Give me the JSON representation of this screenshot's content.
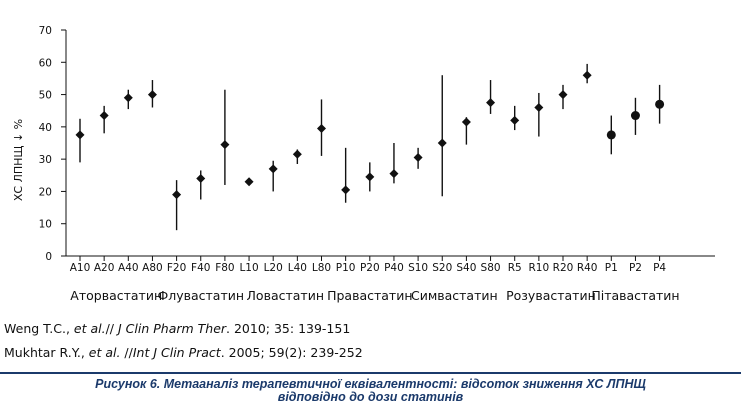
{
  "chart_data": {
    "type": "scatter",
    "ylabel": "ХС ЛПНЩ ↓ %",
    "ylim": [
      0,
      70
    ],
    "yticks": [
      "0",
      "10",
      "20",
      "30",
      "40",
      "50",
      "60",
      "70"
    ],
    "grid": false,
    "categories": [
      "A10",
      "A20",
      "A40",
      "A80",
      "F20",
      "F40",
      "F80",
      "L10",
      "L20",
      "L40",
      "L80",
      "P10",
      "P20",
      "P40",
      "S10",
      "S20",
      "S40",
      "S80",
      "R5",
      "R10",
      "R20",
      "R40",
      "P1",
      "P2",
      "P4"
    ],
    "points": [
      {
        "label": "A10",
        "value": 37.5,
        "low": 29,
        "high": 42.5,
        "marker": "diamond"
      },
      {
        "label": "A20",
        "value": 43.5,
        "low": 38,
        "high": 46.5,
        "marker": "diamond"
      },
      {
        "label": "A40",
        "value": 49,
        "low": 45.5,
        "high": 51.5,
        "marker": "diamond"
      },
      {
        "label": "A80",
        "value": 50,
        "low": 46,
        "high": 54.5,
        "marker": "diamond"
      },
      {
        "label": "F20",
        "value": 19,
        "low": 8,
        "high": 23.5,
        "marker": "diamond"
      },
      {
        "label": "F40",
        "value": 24,
        "low": 17.5,
        "high": 26.5,
        "marker": "diamond"
      },
      {
        "label": "F80",
        "value": 34.5,
        "low": 22,
        "high": 51.5,
        "marker": "diamond"
      },
      {
        "label": "L10",
        "value": 23,
        "low": 22,
        "high": 24,
        "marker": "diamond"
      },
      {
        "label": "L20",
        "value": 27,
        "low": 20,
        "high": 29.5,
        "marker": "diamond"
      },
      {
        "label": "L40",
        "value": 31.5,
        "low": 28.5,
        "high": 33,
        "marker": "diamond"
      },
      {
        "label": "L80",
        "value": 39.5,
        "low": 31,
        "high": 48.5,
        "marker": "diamond"
      },
      {
        "label": "P10",
        "value": 20.5,
        "low": 16.5,
        "high": 33.5,
        "marker": "diamond"
      },
      {
        "label": "P20",
        "value": 24.5,
        "low": 20,
        "high": 29,
        "marker": "diamond"
      },
      {
        "label": "P40",
        "value": 25.5,
        "low": 22.5,
        "high": 35,
        "marker": "diamond"
      },
      {
        "label": "S10",
        "value": 30.5,
        "low": 27,
        "high": 33.5,
        "marker": "diamond"
      },
      {
        "label": "S20",
        "value": 35,
        "low": 18.5,
        "high": 56,
        "marker": "diamond"
      },
      {
        "label": "S40",
        "value": 41.5,
        "low": 34.5,
        "high": 43,
        "marker": "diamond"
      },
      {
        "label": "S80",
        "value": 47.5,
        "low": 44,
        "high": 54.5,
        "marker": "diamond"
      },
      {
        "label": "R5",
        "value": 42,
        "low": 39,
        "high": 46.5,
        "marker": "diamond"
      },
      {
        "label": "R10",
        "value": 46,
        "low": 37,
        "high": 50.5,
        "marker": "diamond"
      },
      {
        "label": "R20",
        "value": 50,
        "low": 45.5,
        "high": 53,
        "marker": "diamond"
      },
      {
        "label": "R40",
        "value": 56,
        "low": 53.5,
        "high": 59.5,
        "marker": "diamond"
      },
      {
        "label": "P1",
        "value": 37.5,
        "low": 31.5,
        "high": 43.5,
        "marker": "circle"
      },
      {
        "label": "P2",
        "value": 43.5,
        "low": 37.5,
        "high": 49,
        "marker": "circle"
      },
      {
        "label": "P4",
        "value": 47,
        "low": 41,
        "high": 53,
        "marker": "circle"
      }
    ],
    "groups": [
      {
        "label": "Аторвастатин",
        "from": 0,
        "to": 3
      },
      {
        "label": "Флувастатин",
        "from": 4,
        "to": 6
      },
      {
        "label": "Ловастатин",
        "from": 7,
        "to": 10
      },
      {
        "label": "Правастатин",
        "from": 11,
        "to": 13
      },
      {
        "label": "Симвастатин",
        "from": 14,
        "to": 17
      },
      {
        "label": "Розувастатин",
        "from": 18,
        "to": 21
      },
      {
        "label": "Пітавастатин",
        "from": 22,
        "to": 24
      }
    ],
    "colors": {
      "marker": "#111111",
      "axis": "#111111"
    }
  },
  "references": {
    "ref1": {
      "authors": "Weng T.C., ",
      "etal": "et al.",
      "sep": "// ",
      "journal": "J Clin Pharm Ther",
      "rest": ". 2010; 35: 139-151"
    },
    "ref2": {
      "authors": "Mukhtar R.Y., ",
      "etal": "et al.",
      "sep": " //",
      "journal": "Int J Clin Pract",
      "rest": ". 2005; 59(2): 239-252"
    }
  },
  "caption": {
    "line1": "Рисунок 6. Метааналіз терапевтичної еквівалентності: відсоток зниження ХС ЛПНЩ",
    "line2": "відповідно до дози статинів"
  }
}
